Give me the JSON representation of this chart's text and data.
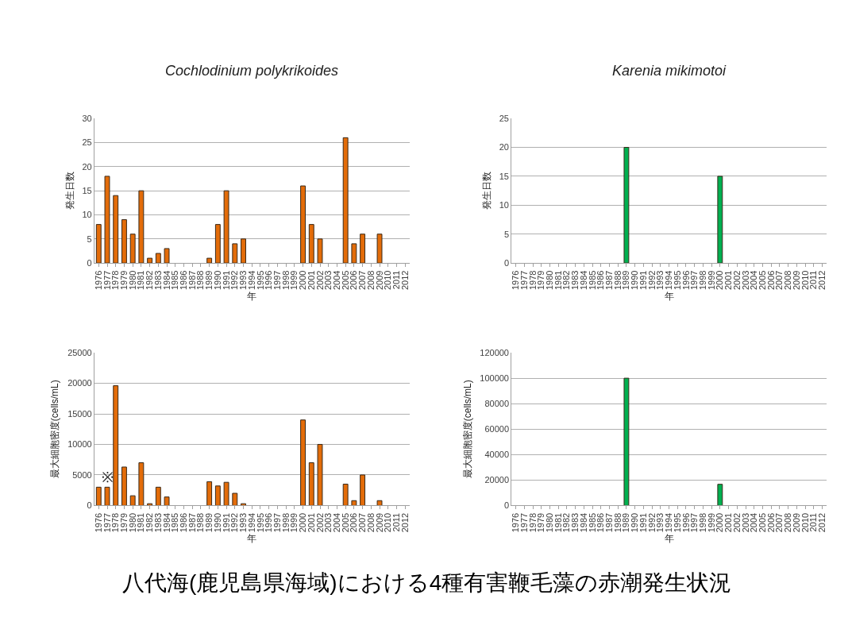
{
  "chart_data": [
    {
      "type": "bar",
      "title": "Cochlodinium polykrikoides",
      "xlabel": "年",
      "ylabel": "発生日数",
      "categories": [
        "1976",
        "1977",
        "1978",
        "1979",
        "1980",
        "1981",
        "1982",
        "1983",
        "1984",
        "1985",
        "1986",
        "1987",
        "1988",
        "1989",
        "1990",
        "1991",
        "1992",
        "1993",
        "1994",
        "1995",
        "1996",
        "1997",
        "1998",
        "1999",
        "2000",
        "2001",
        "2002",
        "2003",
        "2004",
        "2005",
        "2006",
        "2007",
        "2008",
        "2009",
        "2010",
        "2011",
        "2012"
      ],
      "series": [
        {
          "color": "#e36c09",
          "values": [
            8,
            18,
            14,
            9,
            6,
            15,
            1,
            2,
            3,
            null,
            null,
            null,
            null,
            1,
            8,
            15,
            4,
            5,
            null,
            null,
            null,
            null,
            null,
            null,
            16,
            8,
            5,
            null,
            null,
            26,
            4,
            6,
            null,
            6,
            null,
            null,
            null
          ]
        }
      ],
      "ylim": [
        0,
        30
      ],
      "yticks": [
        0,
        5,
        10,
        15,
        20,
        25,
        30
      ],
      "grid": "y",
      "annotations": [
        "八代海(鹿児島県海域)における4種有害鞭毛藻の赤潮発生状況"
      ]
    },
    {
      "type": "bar",
      "title": "Karenia mikimotoi",
      "xlabel": "年",
      "ylabel": "発生日数",
      "categories": [
        "1976",
        "1977",
        "1978",
        "1979",
        "1980",
        "1981",
        "1982",
        "1983",
        "1984",
        "1985",
        "1986",
        "1987",
        "1988",
        "1989",
        "1990",
        "1991",
        "1992",
        "1993",
        "1994",
        "1995",
        "1996",
        "1997",
        "1998",
        "1999",
        "2000",
        "2001",
        "2002",
        "2003",
        "2004",
        "2005",
        "2006",
        "2007",
        "2008",
        "2009",
        "2010",
        "2011",
        "2012"
      ],
      "series": [
        {
          "color": "#00b050",
          "values": [
            null,
            null,
            null,
            null,
            null,
            null,
            null,
            null,
            null,
            null,
            null,
            null,
            null,
            20,
            null,
            null,
            null,
            null,
            null,
            null,
            null,
            null,
            null,
            null,
            15,
            null,
            null,
            null,
            null,
            null,
            null,
            null,
            null,
            null,
            null,
            null,
            null
          ]
        }
      ],
      "ylim": [
        0,
        25
      ],
      "yticks": [
        0,
        5,
        10,
        15,
        20,
        25
      ],
      "grid": "y"
    },
    {
      "type": "bar",
      "xlabel": "年",
      "ylabel": "最大細胞密度(cells/mL)",
      "categories": [
        "1976",
        "1977",
        "1978",
        "1979",
        "1980",
        "1981",
        "1982",
        "1983",
        "1984",
        "1985",
        "1986",
        "1987",
        "1988",
        "1989",
        "1990",
        "1991",
        "1992",
        "1993",
        "1994",
        "1995",
        "1996",
        "1997",
        "1998",
        "1999",
        "2000",
        "2001",
        "2002",
        "2003",
        "2004",
        "2005",
        "2006",
        "2007",
        "2008",
        "2009",
        "2010",
        "2011",
        "2012"
      ],
      "series": [
        {
          "color": "#e36c09",
          "values": [
            3000,
            3000,
            19600,
            6300,
            1600,
            7000,
            300,
            3000,
            1400,
            null,
            null,
            null,
            null,
            3900,
            3200,
            3800,
            2000,
            300,
            null,
            null,
            null,
            null,
            null,
            null,
            14000,
            7000,
            10000,
            null,
            null,
            3500,
            800,
            5000,
            null,
            800,
            null,
            null,
            null
          ]
        }
      ],
      "ylim": [
        0,
        25000
      ],
      "yticks": [
        0,
        5000,
        10000,
        15000,
        20000,
        25000
      ],
      "grid": "y",
      "annotations": [
        {
          "text": "※",
          "x": "1977",
          "y": 3000
        }
      ]
    },
    {
      "type": "bar",
      "xlabel": "年",
      "ylabel": "最大細胞密度(cells/mL)",
      "categories": [
        "1976",
        "1977",
        "1978",
        "1979",
        "1980",
        "1981",
        "1982",
        "1983",
        "1984",
        "1985",
        "1986",
        "1987",
        "1988",
        "1989",
        "1990",
        "1991",
        "1992",
        "1993",
        "1994",
        "1995",
        "1996",
        "1997",
        "1998",
        "1999",
        "2000",
        "2001",
        "2002",
        "2003",
        "2004",
        "2005",
        "2006",
        "2007",
        "2008",
        "2009",
        "2010",
        "2011",
        "2012"
      ],
      "series": [
        {
          "color": "#00b050",
          "values": [
            null,
            null,
            null,
            null,
            null,
            null,
            null,
            null,
            null,
            null,
            null,
            null,
            null,
            100000,
            null,
            null,
            null,
            null,
            null,
            null,
            null,
            null,
            null,
            null,
            16700,
            null,
            null,
            null,
            null,
            null,
            null,
            null,
            null,
            null,
            null,
            null,
            null
          ]
        }
      ],
      "ylim": [
        0,
        120000
      ],
      "yticks": [
        0,
        20000,
        40000,
        60000,
        80000,
        100000,
        120000
      ],
      "grid": "y"
    }
  ]
}
